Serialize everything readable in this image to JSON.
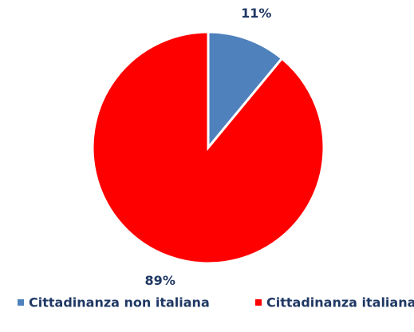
{
  "chart_data": {
    "type": "pie",
    "categories": [
      "Cittadinanza non italiana",
      "Cittadinanza italiana"
    ],
    "values": [
      11,
      89
    ],
    "value_labels": [
      "11%",
      "89%"
    ],
    "colors": [
      "#4f81bd",
      "#ff0000"
    ],
    "legend": "bottom"
  }
}
